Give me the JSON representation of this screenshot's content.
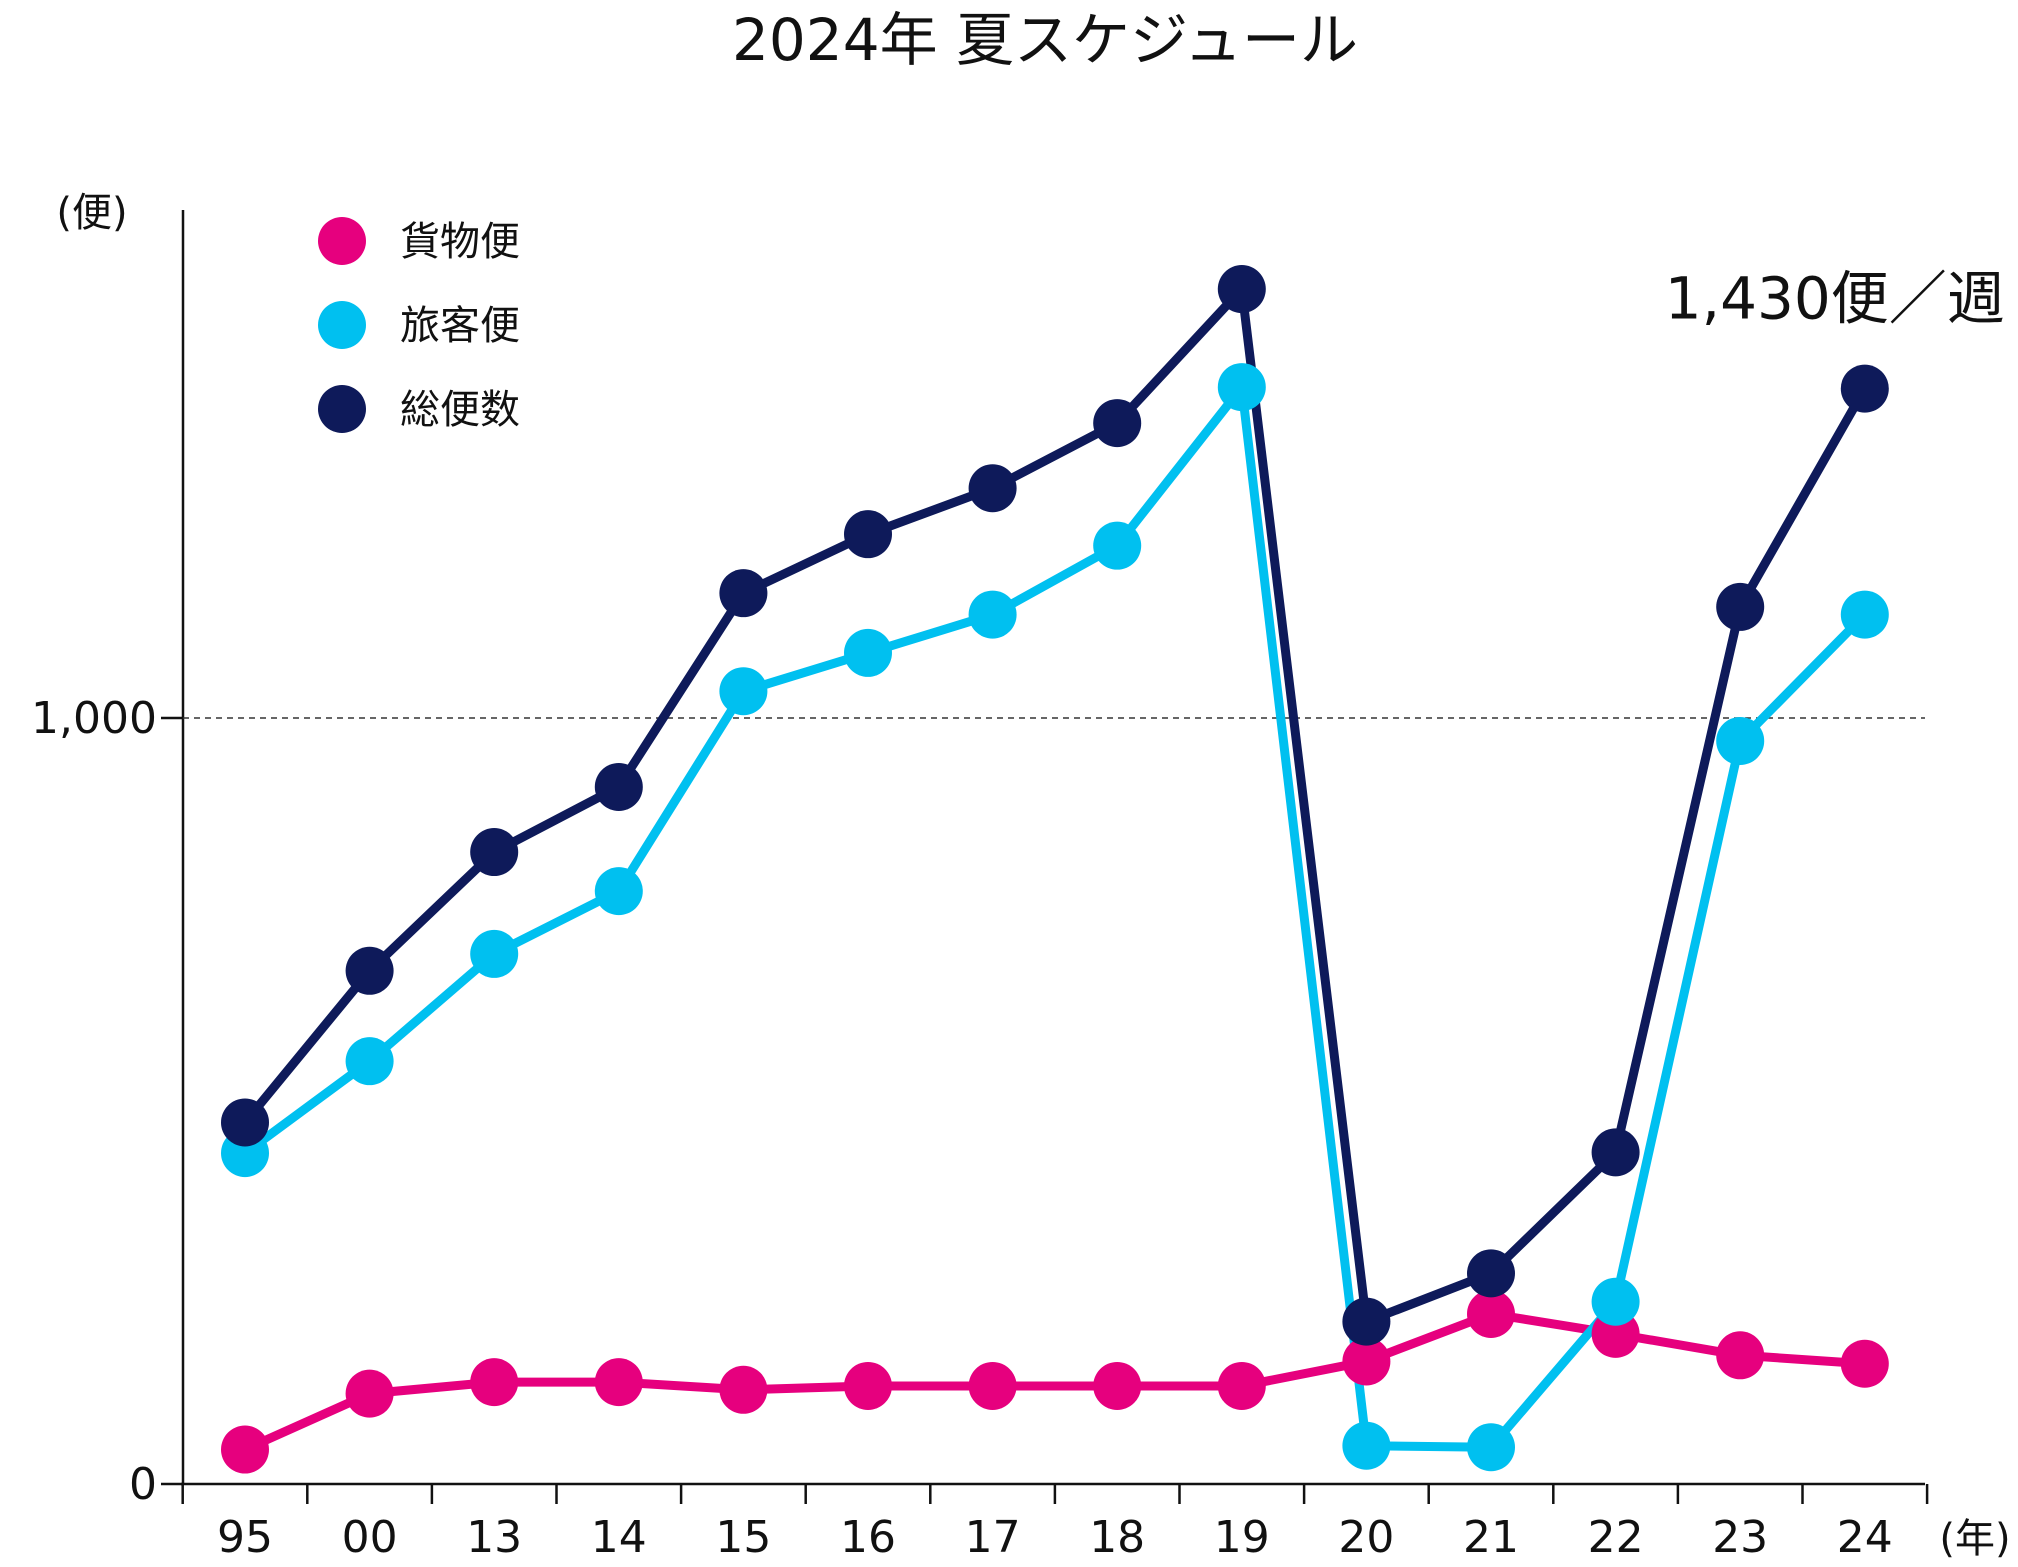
{
  "chart_data": {
    "type": "line",
    "title": "2024年 夏スケジュール",
    "ylabel": "(便)",
    "xlabel": "(年)",
    "categories": [
      "95",
      "00",
      "13",
      "14",
      "15",
      "16",
      "17",
      "18",
      "19",
      "20",
      "21",
      "22",
      "23",
      "24"
    ],
    "ylim": [
      0,
      1570
    ],
    "yticks": [
      {
        "value": 0,
        "label": "0"
      },
      {
        "value": 1000,
        "label": "1,000"
      }
    ],
    "reference_line": {
      "value": 1000,
      "style": "dashed"
    },
    "series": [
      {
        "name": "貨物便",
        "color": "#e6007e",
        "values": [
          45,
          118,
          133,
          133,
          123,
          128,
          128,
          128,
          128,
          160,
          222,
          196,
          168,
          157
        ]
      },
      {
        "name": "旅客便",
        "color": "#00c0f0",
        "values": [
          432,
          552,
          692,
          774,
          1035,
          1085,
          1135,
          1225,
          1432,
          50,
          48,
          238,
          970,
          1135
        ]
      },
      {
        "name": "総便数",
        "color": "#0e1a5a",
        "values": [
          472,
          670,
          825,
          910,
          1163,
          1240,
          1300,
          1385,
          1560,
          212,
          275,
          433,
          1145,
          1430
        ]
      }
    ],
    "legend_position": "top-left",
    "annotation": {
      "text": "1,430便／週",
      "series": "総便数",
      "category": "24"
    },
    "grid": false
  }
}
